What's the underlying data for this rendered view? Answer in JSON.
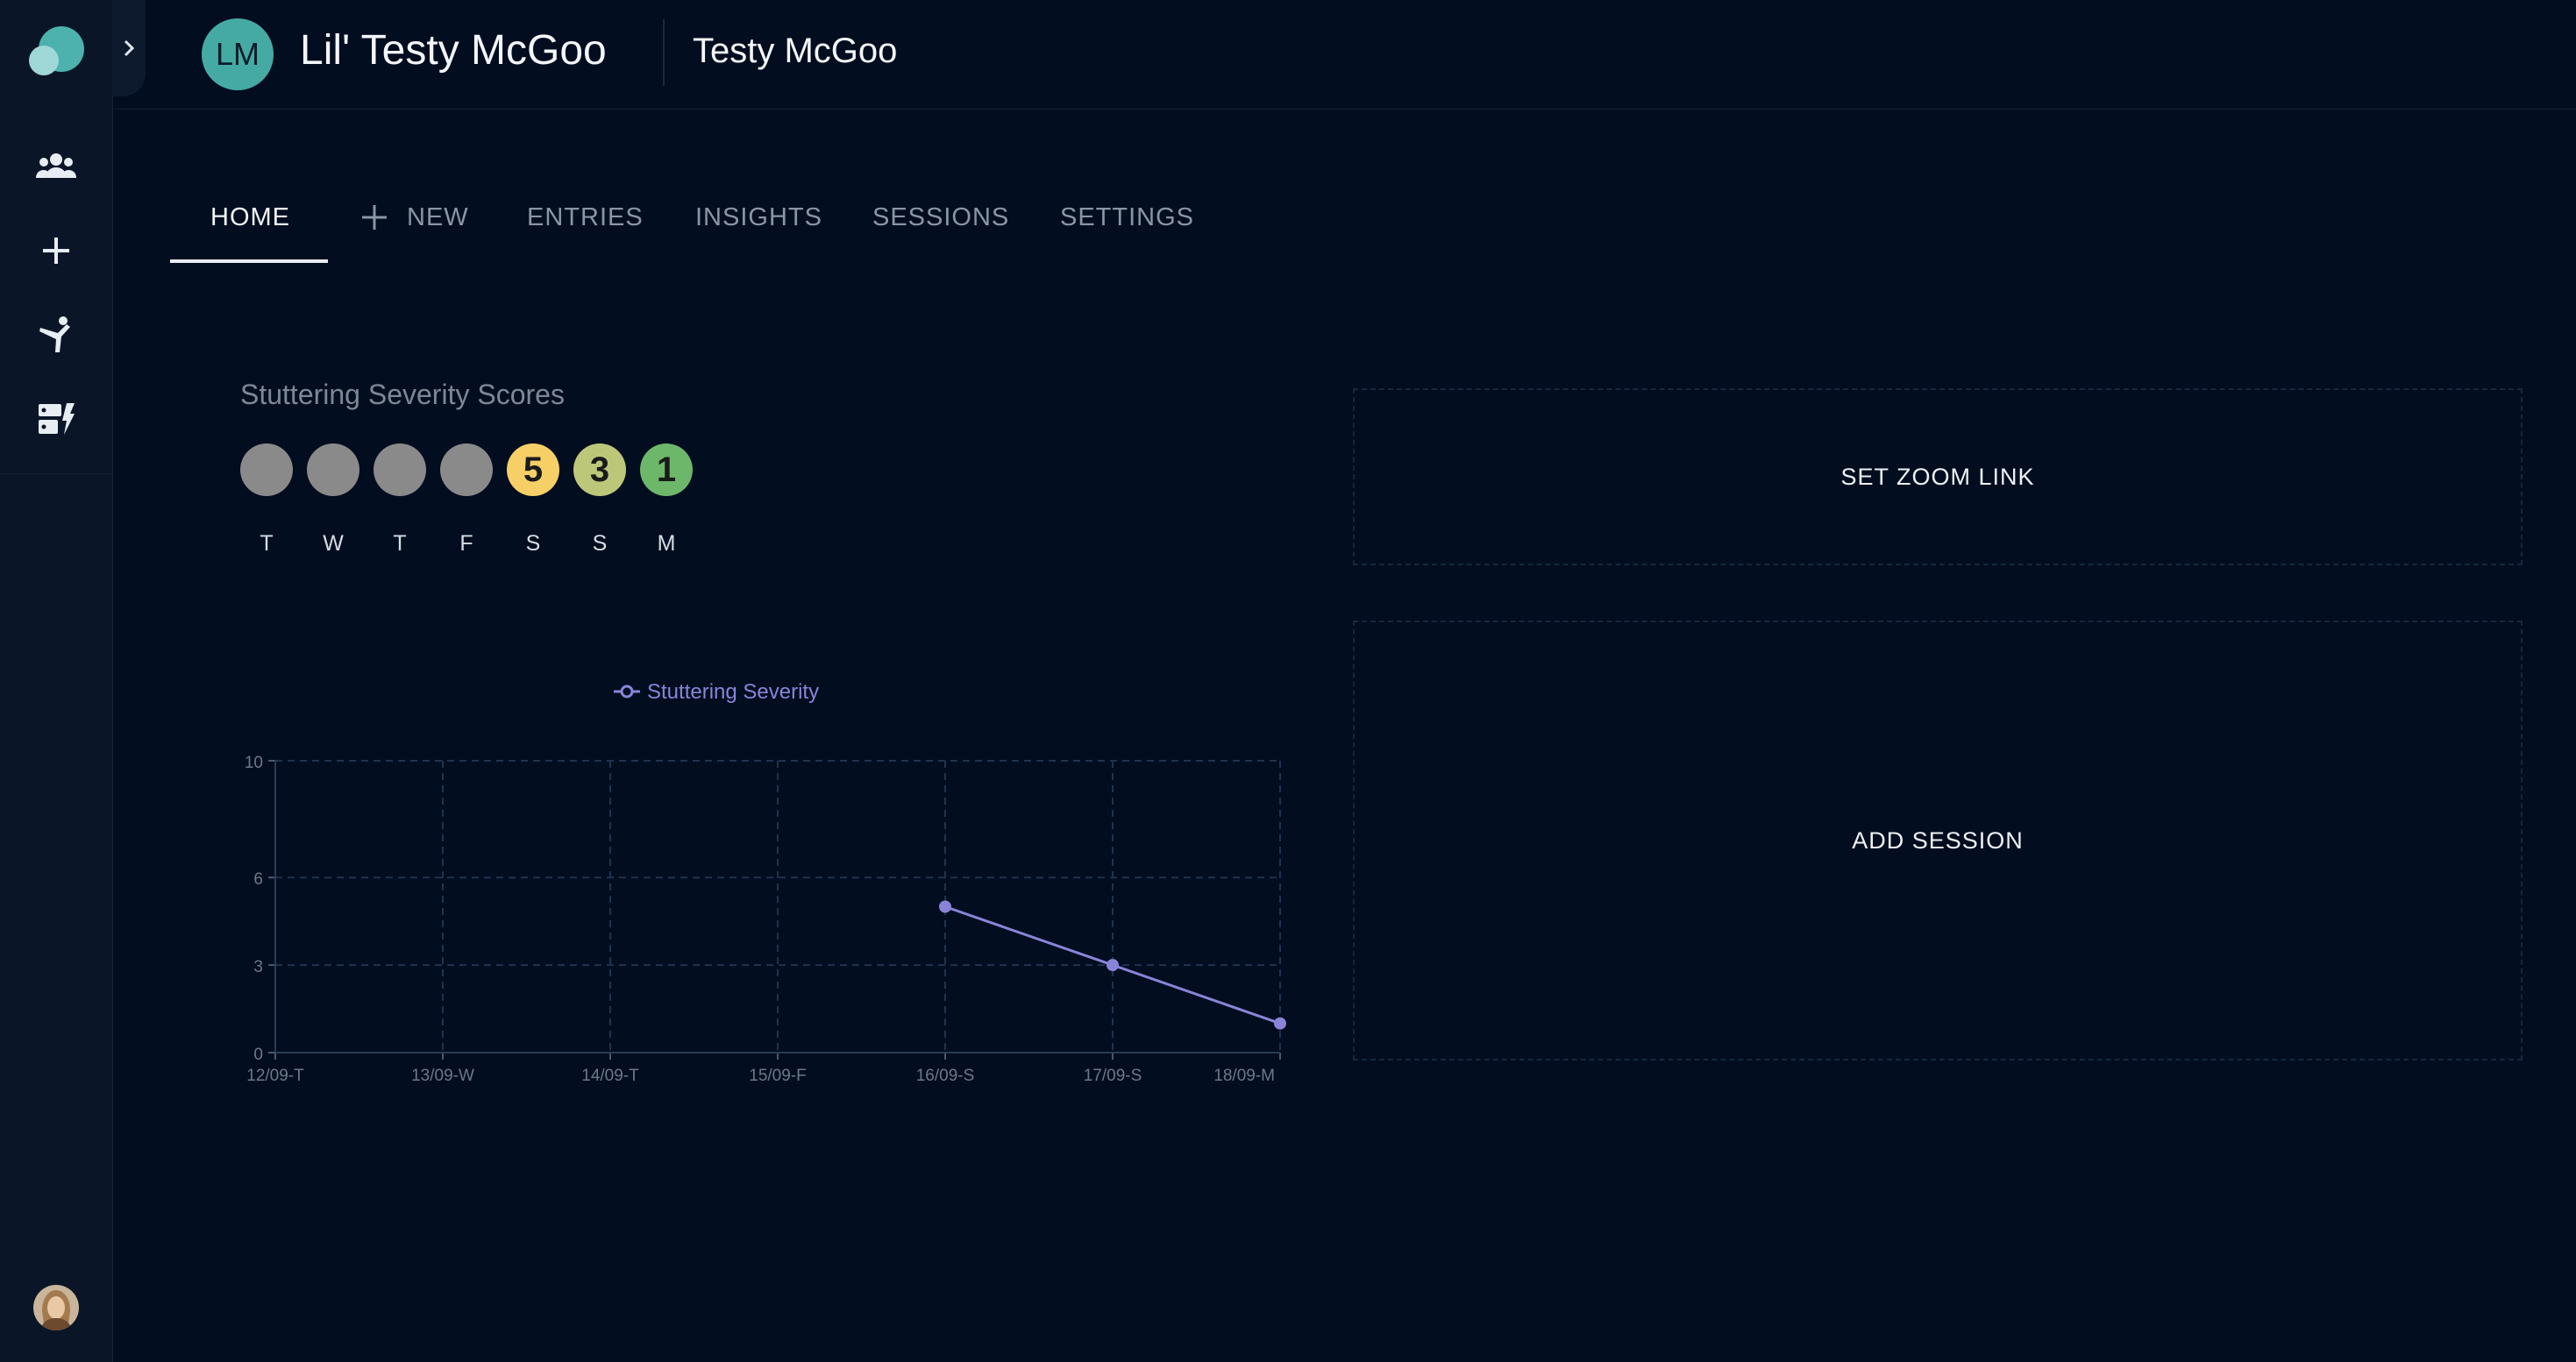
{
  "rail": {
    "expand_icon": "chevron-right-icon",
    "nav": [
      {
        "icon": "clients-group-icon"
      },
      {
        "icon": "plus-icon"
      },
      {
        "icon": "exercise-icon"
      },
      {
        "icon": "dashboard-icon"
      }
    ],
    "profile_icon": "user-avatar-photo"
  },
  "header": {
    "avatar_initials": "LM",
    "client_name": "Lil' Testy McGoo",
    "account_name": "Testy McGoo"
  },
  "tabs": [
    {
      "label": "HOME",
      "active": true
    },
    {
      "label": "NEW",
      "icon": "plus-icon"
    },
    {
      "label": "ENTRIES"
    },
    {
      "label": "INSIGHTS"
    },
    {
      "label": "SESSIONS"
    },
    {
      "label": "SETTINGS"
    }
  ],
  "severity": {
    "title": "Stuttering Severity Scores",
    "days": [
      {
        "day": "T",
        "score": ""
      },
      {
        "day": "W",
        "score": ""
      },
      {
        "day": "T",
        "score": ""
      },
      {
        "day": "F",
        "score": ""
      },
      {
        "day": "S",
        "score": "5"
      },
      {
        "day": "S",
        "score": "3"
      },
      {
        "day": "M",
        "score": "1"
      }
    ],
    "colors": {
      "empty": "#8a8a8a",
      "five": "#f6cf66",
      "three": "#bcc77a",
      "one": "#6db76b"
    }
  },
  "chart_data": {
    "type": "line",
    "categories": [
      "12/09-T",
      "13/09-W",
      "14/09-T",
      "15/09-F",
      "16/09-S",
      "17/09-S",
      "18/09-M"
    ],
    "series": [
      {
        "name": "Stuttering Severity",
        "values": [
          null,
          null,
          null,
          null,
          5,
          3,
          1
        ],
        "color": "#8a84d8"
      }
    ],
    "yticks": [
      0,
      3,
      6,
      10
    ],
    "ylim": [
      0,
      10
    ],
    "grid": true,
    "legend": "top-center"
  },
  "actions": {
    "zoom_label": "SET ZOOM LINK",
    "session_label": "ADD SESSION"
  }
}
